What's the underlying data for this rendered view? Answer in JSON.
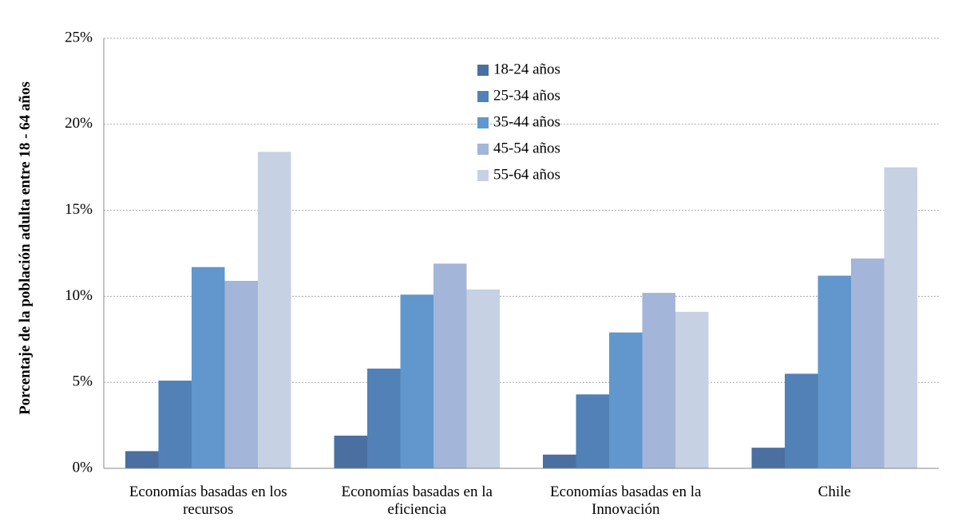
{
  "chart_data": {
    "type": "bar",
    "y_axis_label": "Porcentaje de la población adulta entre 18 - 64 años",
    "categories": [
      "Economías basadas en los recursos",
      "Economías basadas en la eficiencia",
      "Economías basadas en la Innovación",
      "Chile"
    ],
    "series": [
      {
        "name": "18-24 años",
        "color": "#4a6fa0",
        "values": [
          1.0,
          1.9,
          0.8,
          1.2
        ]
      },
      {
        "name": "25-34 años",
        "color": "#5181b6",
        "values": [
          5.1,
          5.8,
          4.3,
          5.5
        ]
      },
      {
        "name": "35-44 años",
        "color": "#6197cc",
        "values": [
          11.7,
          10.1,
          7.9,
          11.2
        ]
      },
      {
        "name": "45-54 años",
        "color": "#a3b5d8",
        "values": [
          10.9,
          11.9,
          10.2,
          12.2
        ]
      },
      {
        "name": "55-64 años",
        "color": "#c6d1e4",
        "values": [
          18.4,
          10.4,
          9.1,
          17.5
        ]
      }
    ],
    "ylim": [
      0,
      25
    ],
    "yticks": [
      {
        "value": 0,
        "label": "0%"
      },
      {
        "value": 5,
        "label": "5%"
      },
      {
        "value": 10,
        "label": "10%"
      },
      {
        "value": 15,
        "label": "15%"
      },
      {
        "value": 20,
        "label": "20%"
      },
      {
        "value": 25,
        "label": "25%"
      }
    ],
    "grid": true
  }
}
